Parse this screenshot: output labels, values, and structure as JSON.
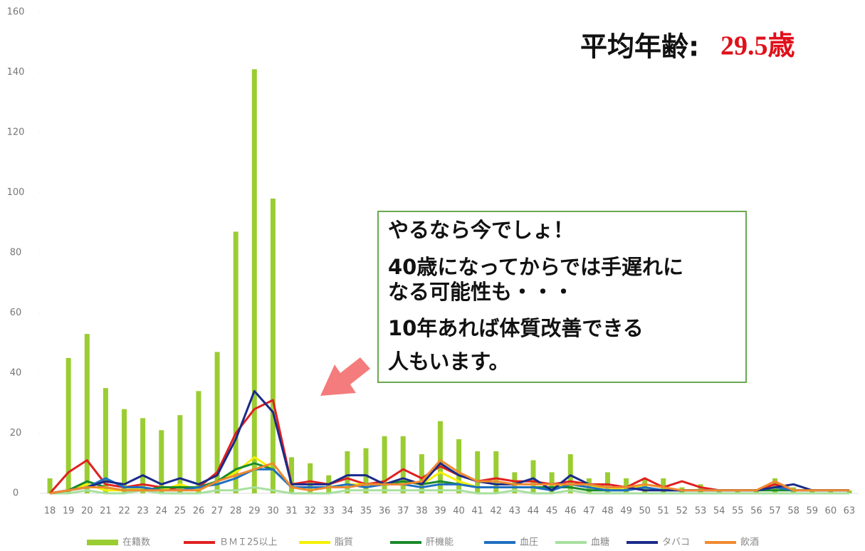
{
  "chart_data": {
    "type": "combo",
    "title_parts": [
      "平均年齢:",
      "29.5歳"
    ],
    "callout": [
      "やるなら今でしょ！",
      "40歳になってからでは手遅れに",
      "なる可能性も・・・",
      "10年あれば体質改善できる",
      "人もいます。"
    ],
    "categories": [
      "18",
      "19",
      "20",
      "21",
      "22",
      "23",
      "24",
      "25",
      "26",
      "27",
      "28",
      "29",
      "30",
      "31",
      "32",
      "33",
      "34",
      "35",
      "36",
      "37",
      "38",
      "39",
      "40",
      "41",
      "42",
      "43",
      "44",
      "45",
      "46",
      "47",
      "48",
      "49",
      "50",
      "51",
      "52",
      "53",
      "54",
      "55",
      "56",
      "57",
      "58",
      "59",
      "60",
      "63"
    ],
    "ylim": [
      0,
      160
    ],
    "yticks": [
      0,
      20,
      40,
      60,
      80,
      100,
      120,
      140,
      160
    ],
    "series": [
      {
        "name": "在籍数",
        "type": "bar",
        "color": "#9acd32",
        "values": [
          5,
          45,
          53,
          35,
          28,
          25,
          21,
          26,
          34,
          47,
          87,
          141,
          98,
          12,
          10,
          6,
          14,
          15,
          19,
          19,
          13,
          24,
          18,
          14,
          14,
          7,
          11,
          7,
          13,
          5,
          7,
          5,
          5,
          5,
          2,
          3,
          1,
          1,
          1,
          5,
          2,
          1,
          1,
          1
        ]
      },
      {
        "name": "ＢＭＩ25以上",
        "type": "line",
        "color": "#e02020",
        "values": [
          0,
          7,
          11,
          3,
          2,
          3,
          2,
          1,
          2,
          7,
          20,
          28,
          31,
          3,
          4,
          3,
          5,
          3,
          4,
          8,
          5,
          9,
          6,
          4,
          5,
          4,
          4,
          3,
          4,
          3,
          3,
          2,
          5,
          2,
          4,
          2,
          1,
          1,
          1,
          3,
          1,
          1,
          1,
          1
        ]
      },
      {
        "name": "脂質",
        "type": "line",
        "color": "#f5f000",
        "values": [
          0,
          1,
          3,
          1,
          1,
          2,
          1,
          3,
          1,
          4,
          7,
          12,
          8,
          2,
          2,
          2,
          3,
          3,
          3,
          4,
          3,
          7,
          4,
          2,
          2,
          2,
          2,
          2,
          3,
          2,
          2,
          1,
          3,
          2,
          1,
          1,
          1,
          1,
          1,
          2,
          1,
          1,
          1,
          1
        ]
      },
      {
        "name": "肝機能",
        "type": "line",
        "color": "#1a8a2a",
        "values": [
          0,
          1,
          4,
          2,
          1,
          1,
          2,
          2,
          2,
          4,
          8,
          10,
          8,
          2,
          2,
          2,
          2,
          3,
          3,
          4,
          3,
          4,
          3,
          2,
          2,
          2,
          2,
          2,
          2,
          1,
          1,
          1,
          2,
          1,
          1,
          1,
          1,
          1,
          1,
          1,
          1,
          1,
          1,
          1
        ]
      },
      {
        "name": "血圧",
        "type": "line",
        "color": "#1f6fc0",
        "values": [
          0,
          1,
          2,
          5,
          2,
          2,
          1,
          1,
          2,
          3,
          5,
          8,
          8,
          2,
          2,
          2,
          3,
          2,
          3,
          3,
          2,
          3,
          3,
          2,
          2,
          2,
          2,
          1,
          3,
          2,
          1,
          1,
          2,
          1,
          1,
          1,
          1,
          1,
          1,
          2,
          1,
          1,
          1,
          1
        ]
      },
      {
        "name": "血糖",
        "type": "line",
        "color": "#a8e0a0",
        "values": [
          0,
          0,
          1,
          0,
          0,
          1,
          0,
          0,
          0,
          1,
          1,
          2,
          1,
          0,
          0,
          0,
          1,
          1,
          1,
          1,
          1,
          1,
          1,
          0,
          0,
          1,
          0,
          0,
          1,
          0,
          0,
          0,
          0,
          0,
          0,
          0,
          0,
          0,
          0,
          0,
          0,
          0,
          0,
          0
        ]
      },
      {
        "name": "タバコ",
        "type": "line",
        "color": "#1a2a8a",
        "values": [
          0,
          1,
          2,
          4,
          3,
          6,
          3,
          5,
          3,
          6,
          18,
          34,
          27,
          3,
          3,
          3,
          6,
          6,
          3,
          5,
          3,
          10,
          6,
          4,
          3,
          3,
          5,
          1,
          6,
          3,
          2,
          2,
          1,
          1,
          1,
          1,
          1,
          1,
          1,
          2,
          3,
          1,
          1,
          1
        ]
      },
      {
        "name": "飲酒",
        "type": "line",
        "color": "#f08a30",
        "values": [
          0,
          1,
          2,
          2,
          1,
          1,
          1,
          1,
          1,
          4,
          6,
          8,
          10,
          2,
          1,
          2,
          2,
          3,
          3,
          3,
          4,
          11,
          7,
          4,
          4,
          3,
          3,
          3,
          3,
          3,
          2,
          2,
          3,
          2,
          1,
          1,
          1,
          1,
          1,
          4,
          1,
          1,
          1,
          1
        ]
      }
    ]
  }
}
